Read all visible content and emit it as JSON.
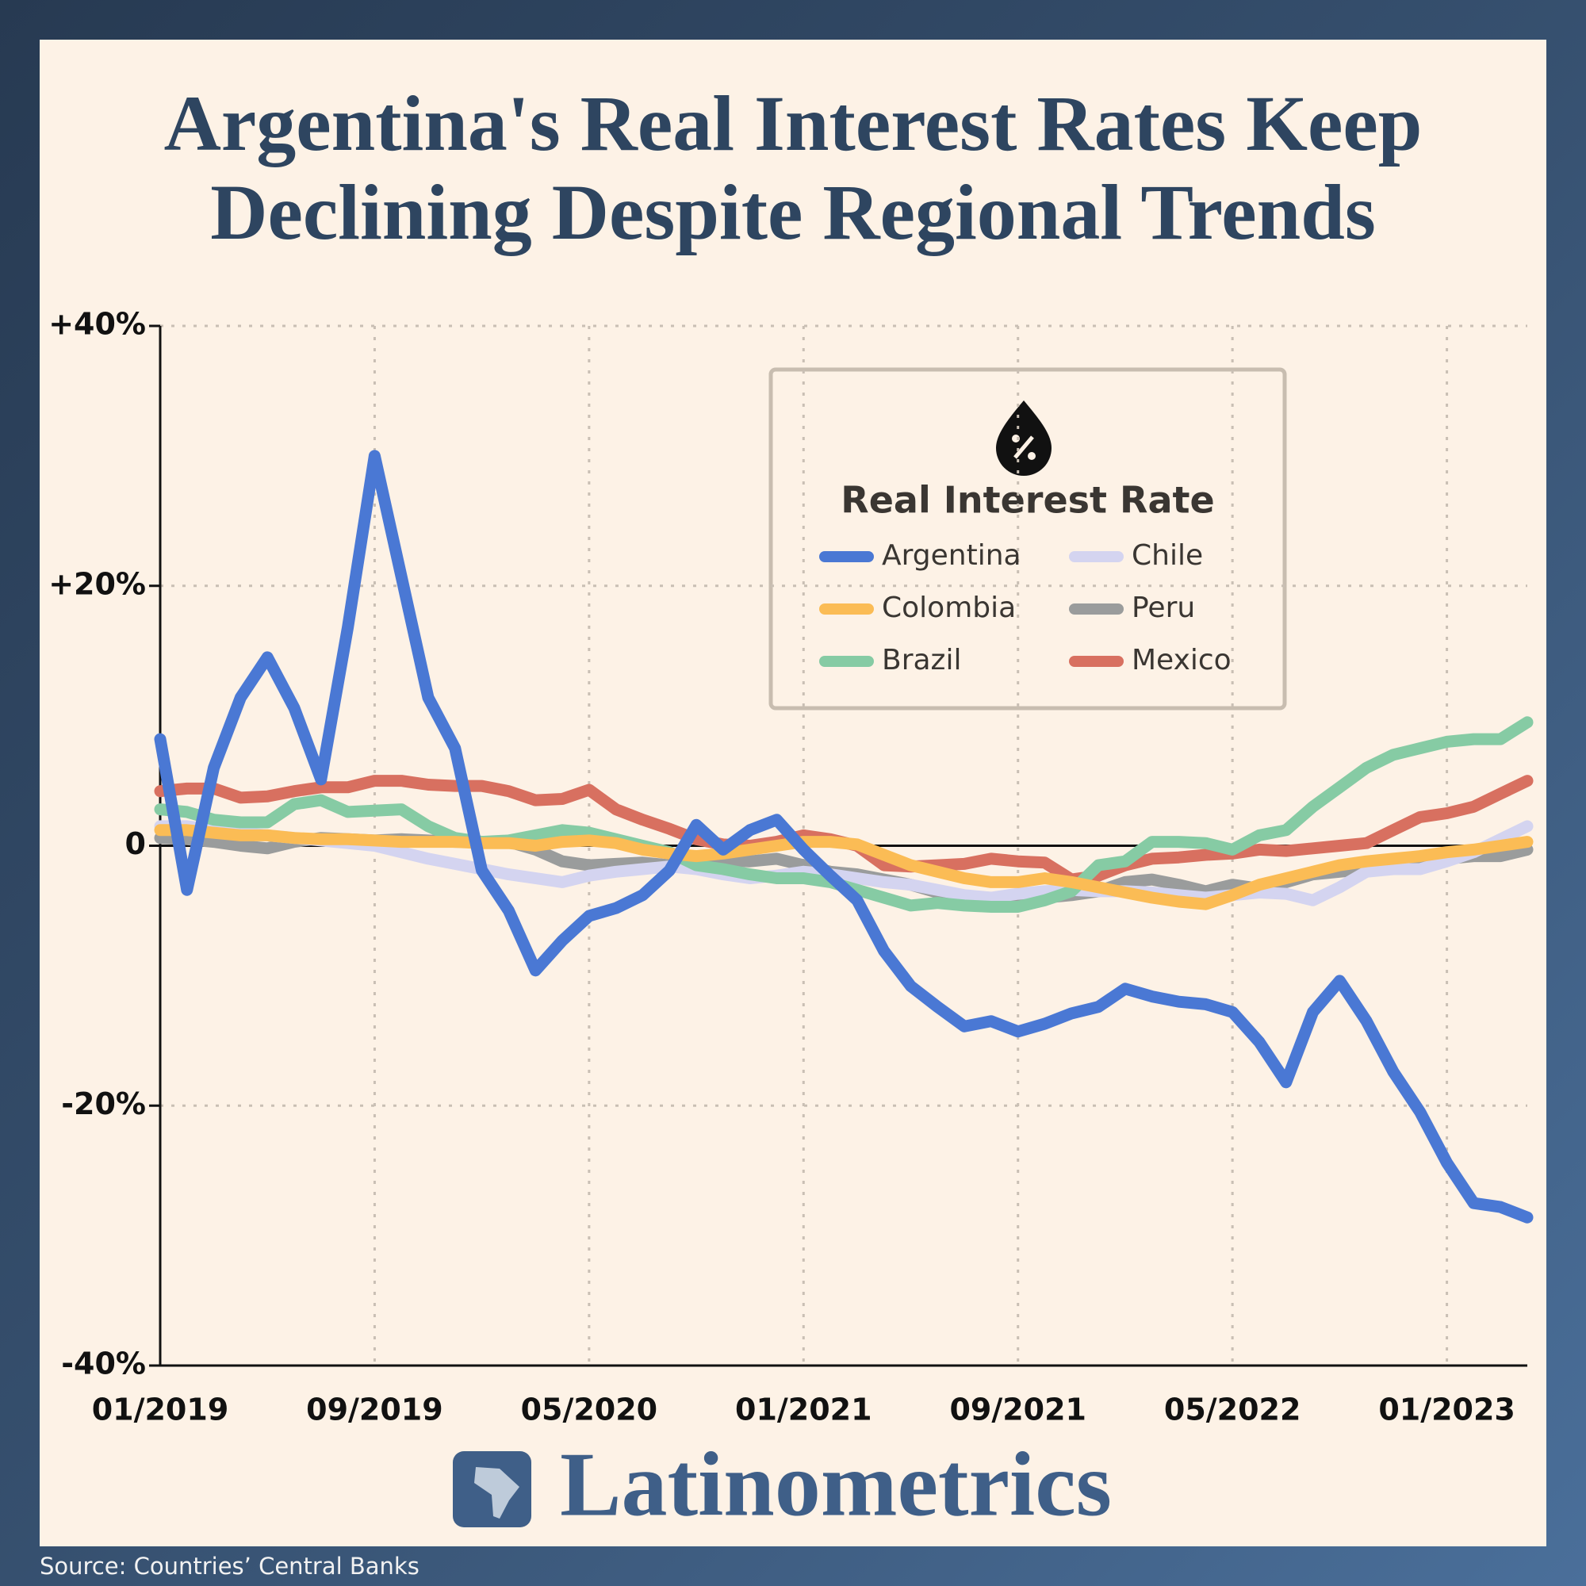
{
  "chart_data": {
    "type": "line",
    "title": "Argentina's Real Interest Rates Keep Declining Despite Regional Trends",
    "legend_title": "Real Interest Rate",
    "brand": "Latinometrics",
    "source": "Source: Countries’ Central Banks",
    "categories": [
      "01/2019",
      null,
      null,
      null,
      null,
      null,
      null,
      null,
      "09/2019",
      null,
      null,
      null,
      null,
      null,
      null,
      null,
      "05/2020",
      null,
      null,
      null,
      null,
      null,
      null,
      null,
      "01/2021",
      null,
      null,
      null,
      null,
      null,
      null,
      null,
      "09/2021",
      null,
      null,
      null,
      null,
      null,
      null,
      null,
      "05/2022",
      null,
      null,
      null,
      null,
      null,
      null,
      null,
      "01/2023",
      null,
      null,
      null
    ],
    "ylim": [
      -40,
      40
    ],
    "yticks": [
      {
        "value": -40,
        "label": "-40%"
      },
      {
        "value": -20,
        "label": "-20%"
      },
      0,
      {
        "value": 20,
        "label": "+20%"
      },
      {
        "value": 40,
        "label": "+40%"
      }
    ],
    "grid": true,
    "series": [
      {
        "name": "Argentina",
        "color": "#4a78d4",
        "values": [
          8.2,
          -3.4,
          6,
          11.4,
          14.5,
          10.6,
          5.1,
          16.8,
          30,
          20.7,
          11.4,
          7.5,
          -1.9,
          -5,
          -9.6,
          -7.3,
          -5.4,
          -4.8,
          -3.8,
          -1.9,
          1.6,
          -0.3,
          1.2,
          2,
          -0.3,
          -2.3,
          -4.2,
          -8.1,
          -10.8,
          -12.4,
          -13.9,
          -13.5,
          -14.3,
          -13.7,
          -12.9,
          -12.4,
          -11,
          -11.6,
          -12,
          -12.2,
          -12.8,
          -15.1,
          -18.2,
          -12.8,
          -10.4,
          -13.5,
          -17.4,
          -20.5,
          -24.4,
          -27.5,
          -27.8,
          -28.6
        ]
      },
      {
        "name": "Colombia",
        "color": "#fbbc55",
        "values": [
          1.2,
          1.2,
          1,
          0.8,
          0.8,
          0.6,
          0.5,
          0.5,
          0.4,
          0.3,
          0.3,
          0.3,
          0.2,
          0.2,
          0,
          0.3,
          0.4,
          0.2,
          -0.3,
          -0.6,
          -0.8,
          -0.6,
          -0.3,
          0,
          0.3,
          0.3,
          0.1,
          -0.7,
          -1.5,
          -2,
          -2.5,
          -2.8,
          -2.8,
          -2.5,
          -2.8,
          -3.2,
          -3.6,
          -4,
          -4.3,
          -4.5,
          -3.8,
          -3,
          -2.5,
          -2,
          -1.5,
          -1.2,
          -1,
          -0.8,
          -0.5,
          -0.3,
          0,
          0.3
        ]
      },
      {
        "name": "Brazil",
        "color": "#86cba4",
        "values": [
          2.8,
          2.6,
          2,
          1.8,
          1.8,
          3.2,
          3.5,
          2.6,
          2.7,
          2.8,
          1.5,
          0.6,
          0.3,
          0.4,
          0.8,
          1.2,
          1,
          0.5,
          0,
          -0.5,
          -1.5,
          -1.8,
          -2.2,
          -2.5,
          -2.5,
          -2.8,
          -3.4,
          -4,
          -4.6,
          -4.4,
          -4.6,
          -4.7,
          -4.7,
          -4.2,
          -3.5,
          -1.5,
          -1.2,
          0.3,
          0.3,
          0.2,
          -0.3,
          0.8,
          1.2,
          3,
          4.5,
          6,
          7,
          7.5,
          8,
          8.2,
          8.2,
          9.5
        ]
      },
      {
        "name": "Chile",
        "color": "#d4d4f0",
        "values": [
          1.5,
          1.5,
          1.2,
          1,
          0.8,
          0.6,
          0.4,
          0.2,
          0,
          -0.5,
          -1,
          -1.4,
          -1.8,
          -2.2,
          -2.5,
          -2.8,
          -2.3,
          -2,
          -1.8,
          -1.6,
          -1.8,
          -2.2,
          -2.5,
          -2.3,
          -2,
          -2.2,
          -2.5,
          -2.8,
          -3,
          -3.4,
          -3.8,
          -4,
          -3.7,
          -3.5,
          -3.4,
          -3.5,
          -3.5,
          -3.6,
          -3.8,
          -4,
          -3.8,
          -3.6,
          -3.7,
          -4.2,
          -3.2,
          -2,
          -1.8,
          -1.8,
          -1.2,
          -0.5,
          0.5,
          1.5
        ]
      },
      {
        "name": "Peru",
        "color": "#9a9c9c",
        "values": [
          0.6,
          0.5,
          0.3,
          0,
          -0.2,
          0.3,
          0.6,
          0.5,
          0.4,
          0.5,
          0.4,
          0.3,
          0.3,
          0.3,
          -0.3,
          -1.2,
          -1.5,
          -1.4,
          -1.3,
          -1.5,
          -1.2,
          -1.1,
          -1.2,
          -1,
          -1.5,
          -2,
          -2.2,
          -2.6,
          -3,
          -3.6,
          -4,
          -4.5,
          -4.2,
          -4,
          -3.8,
          -3.5,
          -2.8,
          -2.6,
          -3,
          -3.5,
          -3,
          -3.3,
          -2.8,
          -2.2,
          -2,
          -1.8,
          -1.5,
          -1.3,
          -1,
          -0.8,
          -0.8,
          -0.3
        ]
      },
      {
        "name": "Mexico",
        "color": "#d87060",
        "values": [
          4.2,
          4.4,
          4.4,
          3.7,
          3.8,
          4.2,
          4.5,
          4.5,
          5,
          5,
          4.7,
          4.6,
          4.6,
          4.2,
          3.5,
          3.6,
          4.3,
          2.8,
          2,
          1.3,
          0.5,
          0.1,
          0,
          0.3,
          0.8,
          0.5,
          0,
          -1.5,
          -1.6,
          -1.5,
          -1.4,
          -1,
          -1.2,
          -1.3,
          -2.6,
          -2.3,
          -1.5,
          -1,
          -0.9,
          -0.7,
          -0.6,
          -0.3,
          -0.4,
          -0.2,
          0,
          0.2,
          1.2,
          2.2,
          2.5,
          3,
          4,
          5
        ]
      }
    ]
  }
}
